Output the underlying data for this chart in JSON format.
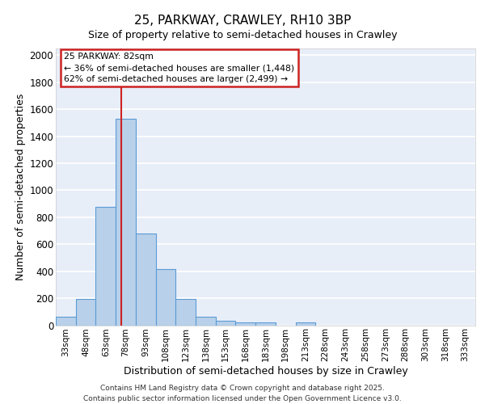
{
  "title1": "25, PARKWAY, CRAWLEY, RH10 3BP",
  "title2": "Size of property relative to semi-detached houses in Crawley",
  "xlabel": "Distribution of semi-detached houses by size in Crawley",
  "ylabel": "Number of semi-detached properties",
  "categories": [
    "33sqm",
    "48sqm",
    "63sqm",
    "78sqm",
    "93sqm",
    "108sqm",
    "123sqm",
    "138sqm",
    "153sqm",
    "168sqm",
    "183sqm",
    "198sqm",
    "213sqm",
    "228sqm",
    "243sqm",
    "258sqm",
    "273sqm",
    "288sqm",
    "303sqm",
    "318sqm",
    "333sqm"
  ],
  "values": [
    65,
    195,
    875,
    1530,
    680,
    415,
    195,
    60,
    30,
    20,
    20,
    0,
    20,
    0,
    0,
    0,
    0,
    0,
    0,
    0,
    0
  ],
  "bar_color": "#b8d0ea",
  "bar_edge_color": "#5b9bd5",
  "annotation_line1": "25 PARKWAY: 82sqm",
  "annotation_line2": "← 36% of semi-detached houses are smaller (1,448)",
  "annotation_line3": "62% of semi-detached houses are larger (2,499) →",
  "ylim": [
    0,
    2050
  ],
  "yticks": [
    0,
    200,
    400,
    600,
    800,
    1000,
    1200,
    1400,
    1600,
    1800,
    2000
  ],
  "plot_bg": "#e8eef8",
  "grid_color": "#ffffff",
  "red_line_color": "#cc2222",
  "ann_box_edge": "#cc2222",
  "footer": "Contains HM Land Registry data © Crown copyright and database right 2025.\nContains public sector information licensed under the Open Government Licence v3.0."
}
